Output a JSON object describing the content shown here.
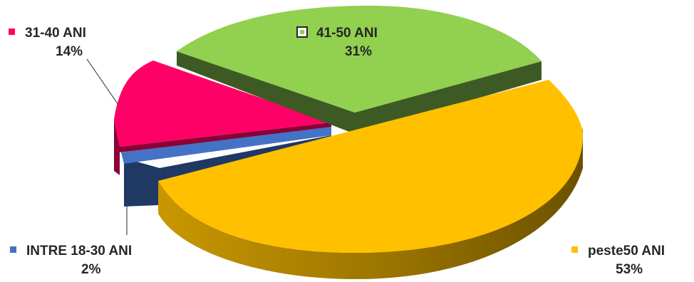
{
  "chart_data": {
    "type": "pie",
    "categories": [
      "INTRE 18-30 ANI",
      "31-40 ANI",
      "41-50 ANI",
      "peste50 ANI"
    ],
    "values": [
      2,
      14,
      31,
      53
    ],
    "labels": [
      "2%",
      "14%",
      "31%",
      "53%"
    ],
    "colors": [
      "#4472C4",
      "#FF0066",
      "#92D050",
      "#FFC000"
    ],
    "side_colors": [
      "#1F3864",
      "#8B0035",
      "#3E5A24",
      "#7F6000"
    ],
    "exploded": true,
    "three_d": true,
    "legend": "none",
    "data_labels": "category-and-percent"
  }
}
